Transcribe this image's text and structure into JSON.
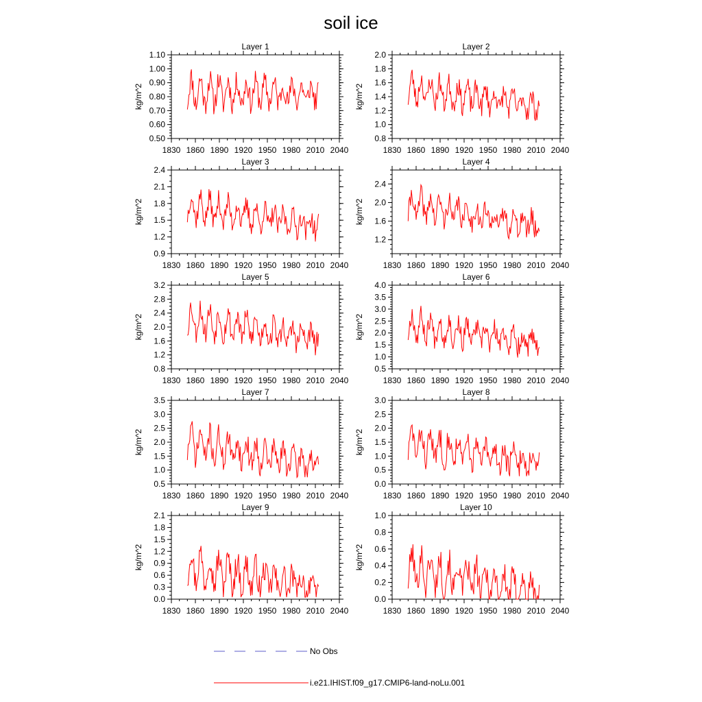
{
  "figure": {
    "title": "soil ice",
    "legend": [
      {
        "label": "No Obs",
        "color": "#5b5bc8",
        "style": "dashed"
      },
      {
        "label": "i.e21.IHIST.f09_g17.CMIP6-land-noLu.001",
        "color": "#ff0000",
        "style": "solid"
      }
    ]
  },
  "chart_data": [
    {
      "type": "line",
      "title": "Layer 1",
      "ylabel": "kg/m^2",
      "xlim": [
        1830,
        2040
      ],
      "x_ticks": [
        1830,
        1860,
        1890,
        1920,
        1950,
        1980,
        2010,
        2040
      ],
      "ylim": [
        0.5,
        1.1
      ],
      "y_ticks": [
        "0.50",
        "0.60",
        "0.70",
        "0.80",
        "0.90",
        "1.00",
        "1.10"
      ],
      "y_min_step": 0.02,
      "series": [
        {
          "name": "i.e21.IHIST.f09_g17.CMIP6-land-noLu.001",
          "color": "#ff0000",
          "x_start": 1850,
          "x_end": 2014,
          "min": 0.6,
          "max": 1.09,
          "base": 0.84,
          "trend": -0.02,
          "amp": 0.1,
          "seed": 11
        }
      ]
    },
    {
      "type": "line",
      "title": "Layer 2",
      "ylabel": "kg/m^2",
      "xlim": [
        1830,
        2040
      ],
      "x_ticks": [
        1830,
        1860,
        1890,
        1920,
        1950,
        1980,
        2010,
        2040
      ],
      "ylim": [
        0.8,
        2.0
      ],
      "y_ticks": [
        "0.8",
        "1.0",
        "1.2",
        "1.4",
        "1.6",
        "1.8",
        "2.0"
      ],
      "y_min_step": 0.05,
      "series": [
        {
          "name": "i.e21.IHIST.f09_g17.CMIP6-land-noLu.001",
          "color": "#ff0000",
          "x_start": 1850,
          "x_end": 2014,
          "min": 0.84,
          "max": 1.83,
          "base": 1.52,
          "trend": -0.25,
          "amp": 0.18,
          "seed": 23
        }
      ]
    },
    {
      "type": "line",
      "title": "Layer 3",
      "ylabel": "kg/m^2",
      "xlim": [
        1830,
        2040
      ],
      "x_ticks": [
        1830,
        1860,
        1890,
        1920,
        1950,
        1980,
        2010,
        2040
      ],
      "ylim": [
        0.9,
        2.4
      ],
      "y_ticks": [
        "0.9",
        "1.2",
        "1.5",
        "1.8",
        "2.1",
        "2.4"
      ],
      "y_min_step": 0.1,
      "series": [
        {
          "name": "i.e21.IHIST.f09_g17.CMIP6-land-noLu.001",
          "color": "#ff0000",
          "x_start": 1850,
          "x_end": 2014,
          "min": 0.95,
          "max": 2.2,
          "base": 1.75,
          "trend": -0.35,
          "amp": 0.22,
          "seed": 37
        }
      ]
    },
    {
      "type": "line",
      "title": "Layer 4",
      "ylabel": "kg/m^2",
      "xlim": [
        1830,
        2040
      ],
      "x_ticks": [
        1830,
        1860,
        1890,
        1920,
        1950,
        1980,
        2010,
        2040
      ],
      "ylim": [
        0.9,
        2.7
      ],
      "y_ticks": [
        "1.2",
        "1.6",
        "2.0",
        "2.4"
      ],
      "y_min_step": 0.1,
      "series": [
        {
          "name": "i.e21.IHIST.f09_g17.CMIP6-land-noLu.001",
          "color": "#ff0000",
          "x_start": 1850,
          "x_end": 2014,
          "min": 0.95,
          "max": 2.55,
          "base": 1.95,
          "trend": -0.45,
          "amp": 0.27,
          "seed": 41
        }
      ]
    },
    {
      "type": "line",
      "title": "Layer 5",
      "ylabel": "kg/m^2",
      "xlim": [
        1830,
        2040
      ],
      "x_ticks": [
        1830,
        1860,
        1890,
        1920,
        1950,
        1980,
        2010,
        2040
      ],
      "ylim": [
        0.8,
        3.2
      ],
      "y_ticks": [
        "0.8",
        "1.2",
        "1.6",
        "2.0",
        "2.4",
        "2.8",
        "3.2"
      ],
      "y_min_step": 0.1,
      "series": [
        {
          "name": "i.e21.IHIST.f09_g17.CMIP6-land-noLu.001",
          "color": "#ff0000",
          "x_start": 1850,
          "x_end": 2014,
          "min": 0.98,
          "max": 3.12,
          "base": 2.25,
          "trend": -0.6,
          "amp": 0.38,
          "seed": 53
        }
      ]
    },
    {
      "type": "line",
      "title": "Layer 6",
      "ylabel": "kg/m^2",
      "xlim": [
        1830,
        2040
      ],
      "x_ticks": [
        1830,
        1860,
        1890,
        1920,
        1950,
        1980,
        2010,
        2040
      ],
      "ylim": [
        0.5,
        4.0
      ],
      "y_ticks": [
        "0.5",
        "1.0",
        "1.5",
        "2.0",
        "2.5",
        "3.0",
        "3.5",
        "4.0"
      ],
      "y_min_step": 0.1,
      "series": [
        {
          "name": "i.e21.IHIST.f09_g17.CMIP6-land-noLu.001",
          "color": "#ff0000",
          "x_start": 1850,
          "x_end": 2014,
          "min": 0.92,
          "max": 3.65,
          "base": 2.35,
          "trend": -0.8,
          "amp": 0.5,
          "seed": 67
        }
      ]
    },
    {
      "type": "line",
      "title": "Layer 7",
      "ylabel": "kg/m^2",
      "xlim": [
        1830,
        2040
      ],
      "x_ticks": [
        1830,
        1860,
        1890,
        1920,
        1950,
        1980,
        2010,
        2040
      ],
      "ylim": [
        0.5,
        3.5
      ],
      "y_ticks": [
        "0.5",
        "1.0",
        "1.5",
        "2.0",
        "2.5",
        "3.0",
        "3.5"
      ],
      "y_min_step": 0.1,
      "series": [
        {
          "name": "i.e21.IHIST.f09_g17.CMIP6-land-noLu.001",
          "color": "#ff0000",
          "x_start": 1850,
          "x_end": 2014,
          "min": 0.65,
          "max": 3.35,
          "base": 2.0,
          "trend": -0.8,
          "amp": 0.5,
          "seed": 71
        }
      ]
    },
    {
      "type": "line",
      "title": "Layer 8",
      "ylabel": "kg/m^2",
      "xlim": [
        1830,
        2040
      ],
      "x_ticks": [
        1830,
        1860,
        1890,
        1920,
        1950,
        1980,
        2010,
        2040
      ],
      "ylim": [
        0.0,
        3.0
      ],
      "y_ticks": [
        "0.0",
        "0.5",
        "1.0",
        "1.5",
        "2.0",
        "2.5",
        "3.0"
      ],
      "y_min_step": 0.1,
      "series": [
        {
          "name": "i.e21.IHIST.f09_g17.CMIP6-land-noLu.001",
          "color": "#ff0000",
          "x_start": 1850,
          "x_end": 2014,
          "min": 0.28,
          "max": 2.85,
          "base": 1.5,
          "trend": -0.8,
          "amp": 0.5,
          "seed": 83
        }
      ]
    },
    {
      "type": "line",
      "title": "Layer 9",
      "ylabel": "kg/m^2",
      "xlim": [
        1830,
        2040
      ],
      "x_ticks": [
        1830,
        1860,
        1890,
        1920,
        1950,
        1980,
        2010,
        2040
      ],
      "ylim": [
        0.0,
        2.1
      ],
      "y_ticks": [
        "0.0",
        "0.3",
        "0.6",
        "0.9",
        "1.2",
        "1.5",
        "1.8",
        "2.1"
      ],
      "y_min_step": 0.1,
      "series": [
        {
          "name": "i.e21.IHIST.f09_g17.CMIP6-land-noLu.001",
          "color": "#ff0000",
          "x_start": 1850,
          "x_end": 2014,
          "min": 0.05,
          "max": 1.97,
          "base": 0.85,
          "trend": -0.6,
          "amp": 0.4,
          "seed": 97
        }
      ]
    },
    {
      "type": "line",
      "title": "Layer 10",
      "ylabel": "kg/m^2",
      "xlim": [
        1830,
        2040
      ],
      "x_ticks": [
        1830,
        1860,
        1890,
        1920,
        1950,
        1980,
        2010,
        2040
      ],
      "ylim": [
        0.0,
        1.0
      ],
      "y_ticks": [
        "0.0",
        "0.2",
        "0.4",
        "0.6",
        "0.8",
        "1.0"
      ],
      "y_min_step": 0.05,
      "series": [
        {
          "name": "i.e21.IHIST.f09_g17.CMIP6-land-noLu.001",
          "color": "#ff0000",
          "x_start": 1850,
          "x_end": 2014,
          "min": 0.0,
          "max": 0.95,
          "base": 0.38,
          "trend": -0.3,
          "amp": 0.2,
          "seed": 101
        }
      ]
    }
  ]
}
